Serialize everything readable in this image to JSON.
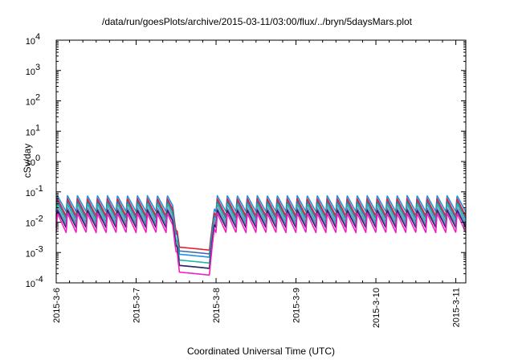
{
  "chart_data": {
    "type": "line",
    "title": "/data/run/goesPlots/archive/2015-03-11/03:00/flux/../bryn/5daysMars.plot",
    "xlabel": "Coordinated Universal Time (UTC)",
    "ylabel": "cSv/day",
    "x_tick_labels": [
      "2015-3-6",
      "2015-3-7",
      "2015-3-8",
      "2015-3-9",
      "2015-3-10",
      "2015-3-11"
    ],
    "y_scale": "log",
    "y_ticks": [
      {
        "base": "10",
        "exp": "-4"
      },
      {
        "base": "10",
        "exp": "-3"
      },
      {
        "base": "10",
        "exp": "-2"
      },
      {
        "base": "10",
        "exp": "-1"
      },
      {
        "base": "10",
        "exp": "0"
      },
      {
        "base": "10",
        "exp": "1"
      },
      {
        "base": "10",
        "exp": "2"
      },
      {
        "base": "10",
        "exp": "3"
      },
      {
        "base": "10",
        "exp": "4"
      }
    ],
    "ylim": [
      0.0001,
      10000
    ],
    "xlim": [
      "2015-03-06 00:00",
      "2015-03-11 03:00"
    ],
    "grid": false,
    "series_pattern": {
      "shape": "periodic sawtooth, fast rise then slow decay",
      "peaks_per_day": 8,
      "dropout": {
        "start": "2015-03-07 13:00",
        "end": "2015-03-07 22:00"
      }
    },
    "series": [
      {
        "color": "#1e90e8",
        "peak": 0.075,
        "trough": 0.022,
        "dropout_min": 0.0007
      },
      {
        "color": "#e8202a",
        "peak": 0.06,
        "trough": 0.016,
        "dropout_min": 0.0012
      },
      {
        "color": "#3f6ea8",
        "peak": 0.05,
        "trough": 0.013,
        "dropout_min": 0.0009
      },
      {
        "color": "#20b8a0",
        "peak": 0.04,
        "trough": 0.01,
        "dropout_min": 0.00045
      },
      {
        "color": "#7a7ad0",
        "peak": 0.03,
        "trough": 0.008,
        "dropout_min": 0.0003
      },
      {
        "color": "#2a2a60",
        "peak": 0.025,
        "trough": 0.0065,
        "dropout_min": 0.0003
      },
      {
        "color": "#f020c0",
        "peak": 0.02,
        "trough": 0.0045,
        "dropout_min": 0.00018
      }
    ]
  }
}
